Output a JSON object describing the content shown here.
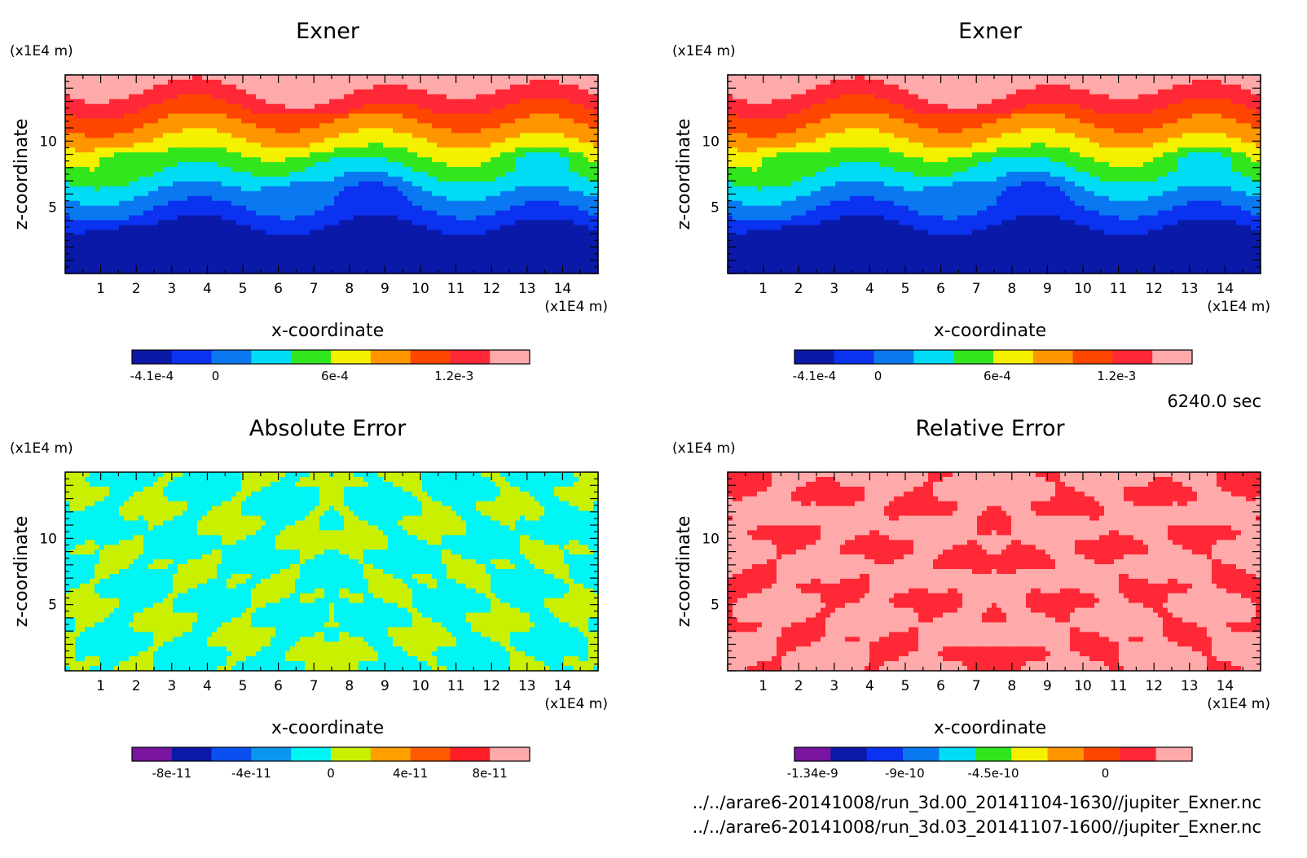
{
  "time_label": "6240.0 sec",
  "footer": {
    "file1": "../../arare6-20141008/run_3d.00_20141104-1630//jupiter_Exner.nc",
    "file2": "../../arare6-20141008/run_3d.03_20141107-1600//jupiter_Exner.nc"
  },
  "chart_data": [
    {
      "type": "heatmap",
      "title": "Exner",
      "xlabel": "x-coordinate",
      "ylabel": "z-coordinate",
      "x_unit": "(x1E4 m)",
      "y_unit": "(x1E4 m)",
      "x_ticks": [
        "1",
        "2",
        "3",
        "4",
        "5",
        "6",
        "7",
        "8",
        "9",
        "10",
        "11",
        "12",
        "13",
        "14"
      ],
      "y_ticks": [
        "10",
        "5"
      ],
      "xlim": [
        0,
        15
      ],
      "ylim": [
        0,
        15
      ],
      "colorbar": {
        "colors": [
          "#0a19a8",
          "#0a32f0",
          "#0a78f0",
          "#00dcf5",
          "#32e61e",
          "#f5f000",
          "#ff9600",
          "#ff4600",
          "#ff2837",
          "#ffaaaa"
        ],
        "labels": [
          "-4.1e-4",
          "0",
          "6e-4",
          "1.2e-3"
        ]
      },
      "pattern": "exner"
    },
    {
      "type": "heatmap",
      "title": "Exner",
      "xlabel": "x-coordinate",
      "ylabel": "z-coordinate",
      "x_unit": "(x1E4 m)",
      "y_unit": "(x1E4 m)",
      "x_ticks": [
        "1",
        "2",
        "3",
        "4",
        "5",
        "6",
        "7",
        "8",
        "9",
        "10",
        "11",
        "12",
        "13",
        "14"
      ],
      "y_ticks": [
        "10",
        "5"
      ],
      "xlim": [
        0,
        15
      ],
      "ylim": [
        0,
        15
      ],
      "colorbar": {
        "colors": [
          "#0a19a8",
          "#0a32f0",
          "#0a78f0",
          "#00dcf5",
          "#32e61e",
          "#f5f000",
          "#ff9600",
          "#ff4600",
          "#ff2837",
          "#ffaaaa"
        ],
        "labels": [
          "-4.1e-4",
          "0",
          "6e-4",
          "1.2e-3"
        ]
      },
      "pattern": "exner"
    },
    {
      "type": "heatmap",
      "title": "Absolute Error",
      "xlabel": "x-coordinate",
      "ylabel": "z-coordinate",
      "x_unit": "(x1E4 m)",
      "y_unit": "(x1E4 m)",
      "x_ticks": [
        "1",
        "2",
        "3",
        "4",
        "5",
        "6",
        "7",
        "8",
        "9",
        "10",
        "11",
        "12",
        "13",
        "14"
      ],
      "y_ticks": [
        "10",
        "5"
      ],
      "xlim": [
        0,
        15
      ],
      "ylim": [
        0,
        15
      ],
      "colorbar": {
        "colors": [
          "#7814a0",
          "#0a19a8",
          "#0a50f0",
          "#0a96f0",
          "#00f5f5",
          "#c8f000",
          "#ffa000",
          "#ff5a00",
          "#ff1e28",
          "#ffaaaa"
        ],
        "labels": [
          "-8e-11",
          "-4e-11",
          "0",
          "4e-11",
          "8e-11"
        ]
      },
      "pattern": "abs"
    },
    {
      "type": "heatmap",
      "title": "Relative Error",
      "xlabel": "x-coordinate",
      "ylabel": "z-coordinate",
      "x_unit": "(x1E4 m)",
      "y_unit": "(x1E4 m)",
      "x_ticks": [
        "1",
        "2",
        "3",
        "4",
        "5",
        "6",
        "7",
        "8",
        "9",
        "10",
        "11",
        "12",
        "13",
        "14"
      ],
      "y_ticks": [
        "10",
        "5"
      ],
      "xlim": [
        0,
        15
      ],
      "ylim": [
        0,
        15
      ],
      "colorbar": {
        "colors": [
          "#7814a0",
          "#0a19a8",
          "#0a32f0",
          "#0a78f0",
          "#00dcf5",
          "#32e61e",
          "#f5f000",
          "#ff9600",
          "#ff4600",
          "#ff2837",
          "#ffaaaa"
        ],
        "labels": [
          "-1.34e-9",
          "-9e-10",
          "-4.5e-10",
          "0"
        ]
      },
      "pattern": "rel"
    }
  ]
}
